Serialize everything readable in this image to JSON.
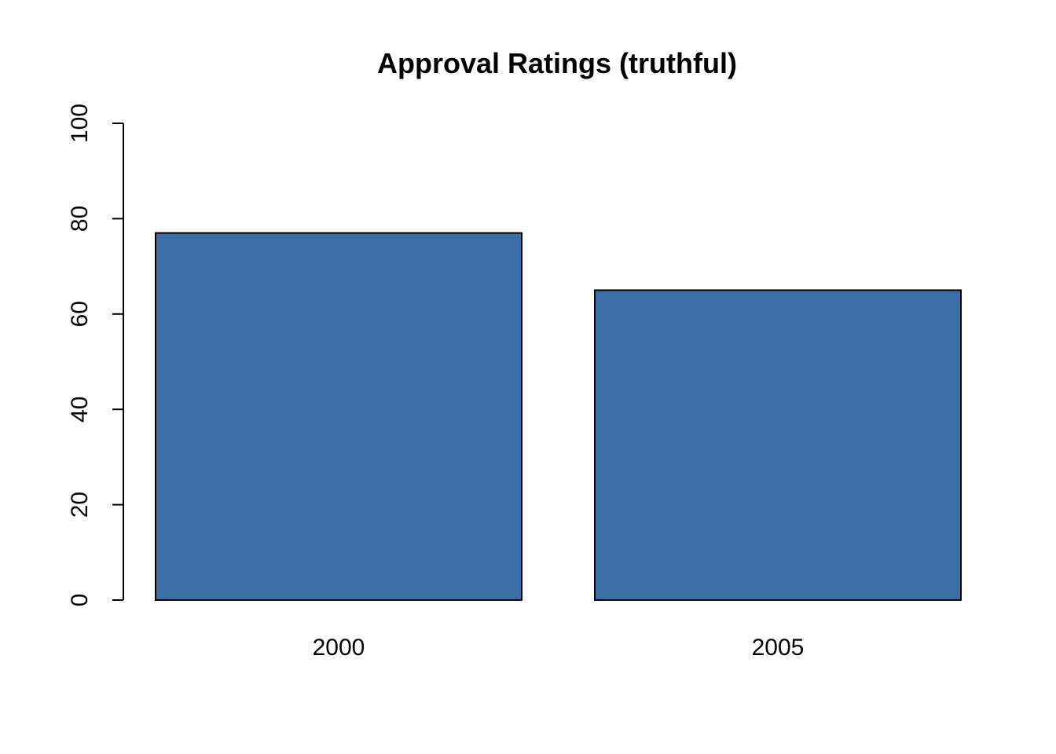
{
  "chart_data": {
    "type": "bar",
    "title": "Approval Ratings (truthful)",
    "xlabel": "",
    "ylabel": "",
    "categories": [
      "2000",
      "2005"
    ],
    "values": [
      77,
      65
    ],
    "ylim": [
      0,
      100
    ],
    "yticks": [
      0,
      20,
      40,
      60,
      80,
      100
    ],
    "ytick_labels": [
      "0",
      "20",
      "40",
      "60",
      "80",
      "100"
    ],
    "bar_color": "#3a6ea5",
    "grid": false,
    "legend": "none"
  }
}
